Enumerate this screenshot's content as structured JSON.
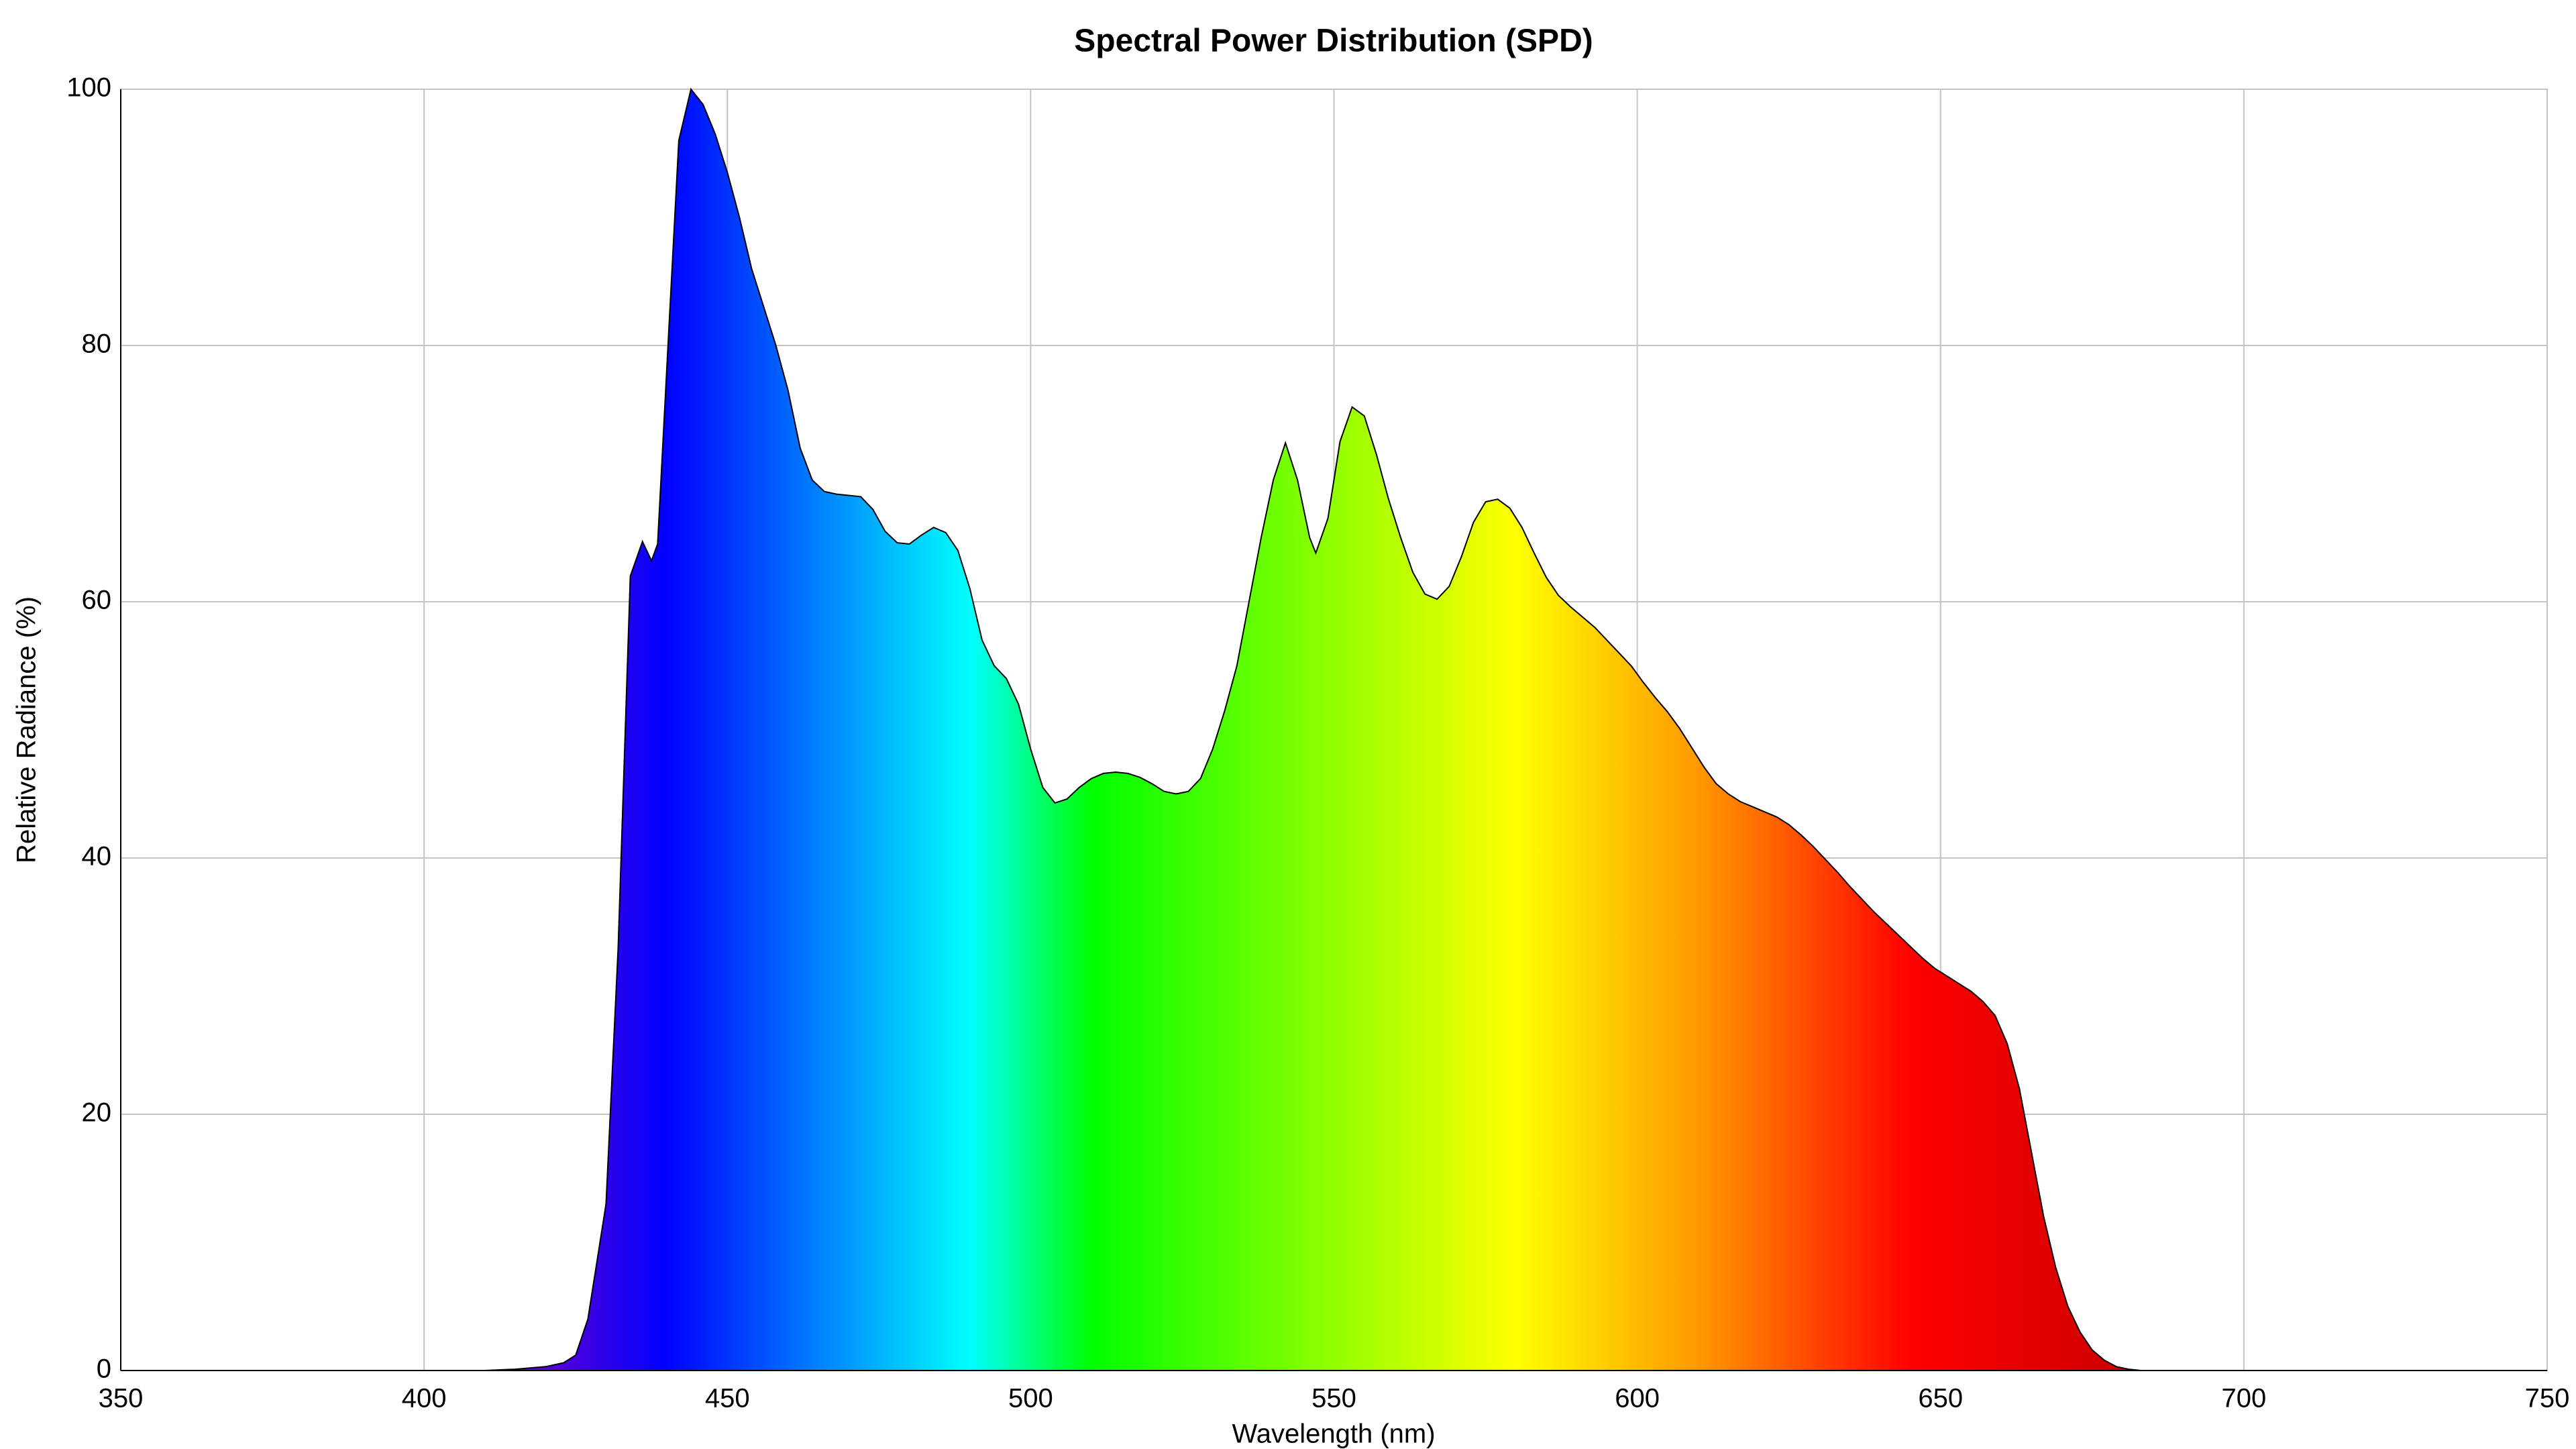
{
  "chart_data": {
    "type": "area",
    "title": "Spectral Power Distribution (SPD)",
    "x_label": "Wavelength (nm)",
    "y_label": "Relative Radiance (%)",
    "x": [
      350,
      400,
      410,
      415,
      420,
      423,
      425,
      427,
      429,
      430,
      432,
      434,
      436,
      437.5,
      438.5,
      440,
      442,
      444,
      446,
      448,
      450,
      452,
      454,
      456,
      458,
      460,
      462,
      464,
      466,
      468,
      472,
      474,
      476,
      478,
      480,
      482,
      484,
      486,
      488,
      490,
      492,
      494,
      496,
      498,
      500,
      502,
      504,
      506,
      508,
      510,
      512,
      514,
      516,
      518,
      520,
      522,
      524,
      526,
      528,
      530,
      532,
      534,
      536,
      538,
      540,
      542,
      544,
      546,
      547,
      549,
      551,
      553,
      555,
      557,
      559,
      561,
      563,
      565,
      567,
      569,
      571,
      573,
      575,
      577,
      579,
      581,
      583,
      585,
      587,
      589,
      591,
      593,
      595,
      597,
      599,
      601,
      603,
      605,
      607,
      609,
      611,
      613,
      615,
      617,
      619,
      621,
      623,
      625,
      627,
      629,
      631,
      633,
      635,
      637,
      639,
      641,
      643,
      645,
      647,
      649,
      651,
      653,
      655,
      657,
      659,
      661,
      663,
      665,
      667,
      669,
      671,
      673,
      675,
      677,
      679,
      681,
      683,
      750
    ],
    "values": [
      0,
      0,
      0,
      0.1,
      0.3,
      0.6,
      1.2,
      4,
      10,
      13,
      33,
      62,
      64.7,
      63.2,
      64.5,
      78,
      96,
      100,
      98.8,
      96.5,
      93.5,
      90,
      86,
      83,
      80,
      76.5,
      72,
      69.5,
      68.6,
      68.4,
      68.2,
      67.2,
      65.5,
      64.6,
      64.5,
      65.2,
      65.8,
      65.4,
      64,
      61,
      57,
      55,
      54,
      52,
      48.5,
      45.5,
      44.3,
      44.6,
      45.5,
      46.2,
      46.6,
      46.7,
      46.6,
      46.3,
      45.8,
      45.2,
      45,
      45.2,
      46.2,
      48.5,
      51.5,
      55,
      60,
      65,
      69.5,
      72.4,
      69.5,
      65,
      63.8,
      66.5,
      72.5,
      75.2,
      74.5,
      71.5,
      68,
      65,
      62.3,
      60.6,
      60.2,
      61.2,
      63.5,
      66.2,
      67.8,
      68,
      67.3,
      65.8,
      63.8,
      61.9,
      60.5,
      59.6,
      58.8,
      58,
      57,
      56,
      55,
      53.7,
      52.5,
      51.4,
      50.1,
      48.6,
      47.1,
      45.8,
      45,
      44.4,
      44,
      43.6,
      43.2,
      42.6,
      41.8,
      40.9,
      39.9,
      38.9,
      37.8,
      36.8,
      35.8,
      34.9,
      34,
      33.1,
      32.2,
      31.4,
      30.8,
      30.2,
      29.6,
      28.8,
      27.7,
      25.5,
      22,
      17,
      12,
      8,
      5,
      3,
      1.6,
      0.8,
      0.3,
      0.1,
      0,
      0
    ],
    "gradient": [
      {
        "x": 420,
        "color": "#5a00d8"
      },
      {
        "x": 440,
        "color": "#0000ff"
      },
      {
        "x": 465,
        "color": "#0080ff"
      },
      {
        "x": 490,
        "color": "#00ffff"
      },
      {
        "x": 510,
        "color": "#00ff00"
      },
      {
        "x": 545,
        "color": "#80ff00"
      },
      {
        "x": 580,
        "color": "#ffff00"
      },
      {
        "x": 610,
        "color": "#ff9900"
      },
      {
        "x": 645,
        "color": "#ff0000"
      },
      {
        "x": 690,
        "color": "#c00000"
      }
    ],
    "line_color": "#000000",
    "xlim": [
      350,
      750
    ],
    "xticks": [
      350,
      400,
      450,
      500,
      550,
      600,
      650,
      700,
      750
    ],
    "ylim": [
      0,
      100
    ],
    "yticks": [
      0,
      20,
      40,
      60,
      80,
      100
    ],
    "grid": true
  }
}
